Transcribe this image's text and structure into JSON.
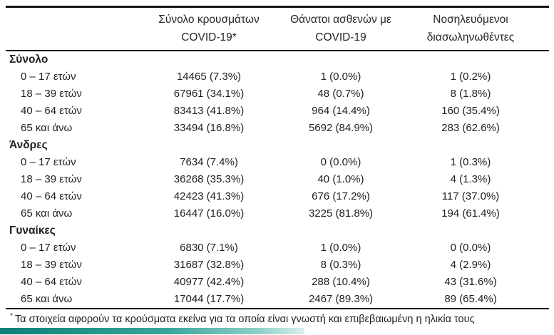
{
  "table": {
    "header": {
      "cases": {
        "line1": "Σύνολο κρουσμάτων",
        "line2": "COVID-19*"
      },
      "deaths": {
        "line1": "Θάνατοι ασθενών με",
        "line2": "COVID-19"
      },
      "intubated": {
        "line1": "Νοσηλευόμενοι",
        "line2": "διασωληνωθέντες"
      }
    },
    "sections": [
      {
        "label": "Σύνολο",
        "rows": [
          {
            "label": "0 – 17 ετών",
            "cases": "14465 (7.3%)",
            "deaths": "1 (0.0%)",
            "intubated": "1 (0.2%)"
          },
          {
            "label": "18 – 39 ετών",
            "cases": "67961 (34.1%)",
            "deaths": "48 (0.7%)",
            "intubated": "8 (1.8%)"
          },
          {
            "label": "40 – 64 ετών",
            "cases": "83413 (41.8%)",
            "deaths": "964 (14.4%)",
            "intubated": "160 (35.4%)"
          },
          {
            "label": "65 και άνω",
            "cases": "33494 (16.8%)",
            "deaths": "5692 (84.9%)",
            "intubated": "283 (62.6%)"
          }
        ]
      },
      {
        "label": "Άνδρες",
        "rows": [
          {
            "label": "0 – 17 ετών",
            "cases": "7634 (7.4%)",
            "deaths": "0 (0.0%)",
            "intubated": "1 (0.3%)"
          },
          {
            "label": "18 – 39 ετών",
            "cases": "36268 (35.3%)",
            "deaths": "40 (1.0%)",
            "intubated": "4 (1.3%)"
          },
          {
            "label": "40 – 64 ετών",
            "cases": "42423 (41.3%)",
            "deaths": "676 (17.2%)",
            "intubated": "117 (37.0%)"
          },
          {
            "label": "65 και άνω",
            "cases": "16447 (16.0%)",
            "deaths": "3225 (81.8%)",
            "intubated": "194 (61.4%)"
          }
        ]
      },
      {
        "label": "Γυναίκες",
        "rows": [
          {
            "label": "0 – 17 ετών",
            "cases": "6830 (7.1%)",
            "deaths": "1 (0.0%)",
            "intubated": "0 (0.0%)"
          },
          {
            "label": "18 – 39 ετών",
            "cases": "31687 (32.8%)",
            "deaths": "8 (0.3%)",
            "intubated": "4 (2.9%)"
          },
          {
            "label": "40 – 64 ετών",
            "cases": "40977 (42.4%)",
            "deaths": "288 (10.4%)",
            "intubated": "43 (31.6%)"
          },
          {
            "label": "65 και άνω",
            "cases": "17044 (17.7%)",
            "deaths": "2467 (89.3%)",
            "intubated": "89 (65.4%)"
          }
        ]
      }
    ],
    "footnote_marker": "*",
    "footnote": "Τα στοιχεία αφορούν τα κρούσματα εκείνα για τα οποία είναι γνωστή και επιβεβαιωμένη η ηλικία τους"
  },
  "colors": {
    "text": "#1f1f1f",
    "rule": "#141414",
    "accent_teal_dark": "#0c8077",
    "accent_teal_light": "#8fd0c8"
  }
}
